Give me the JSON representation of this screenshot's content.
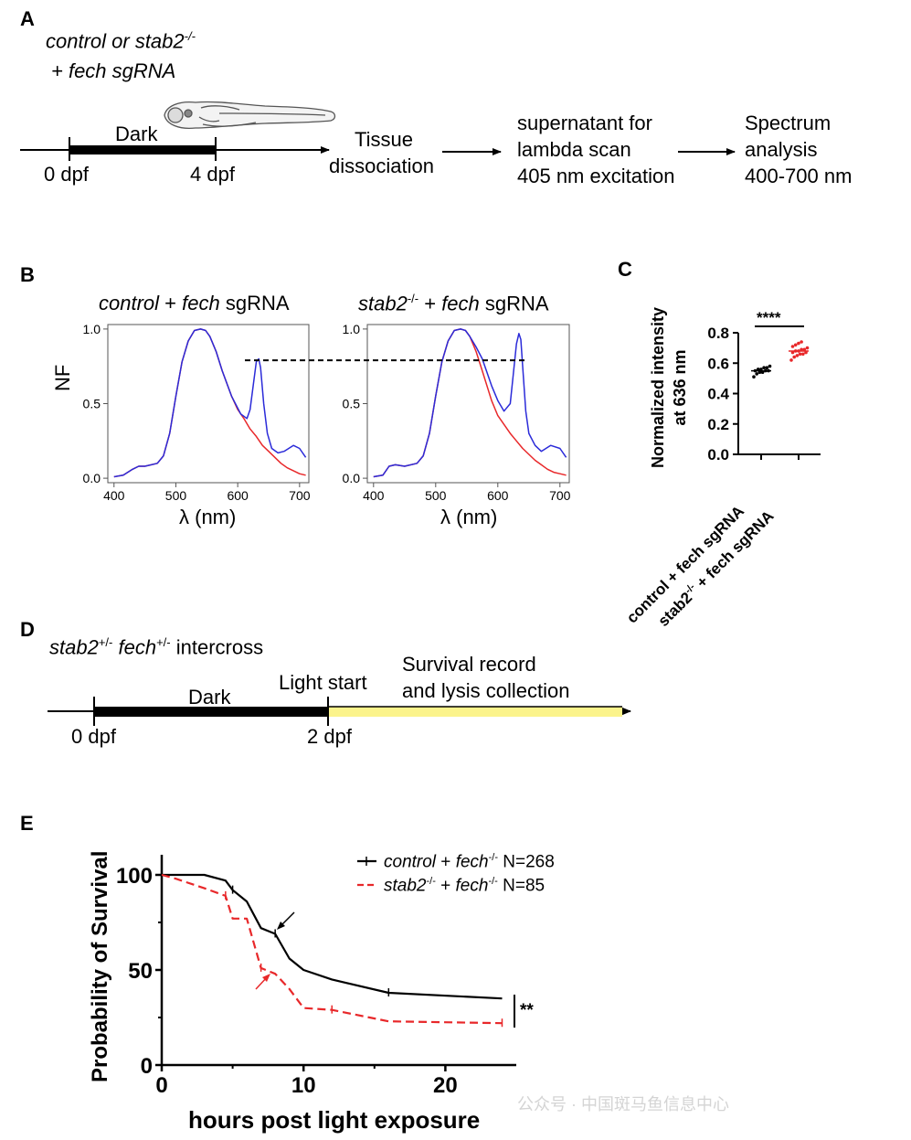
{
  "panel_a": {
    "label": "A",
    "genotype_line1": "control or stab2",
    "genotype_line1_sup": "-/-",
    "genotype_line2": "+ fech sgRNA",
    "dark_label": "Dark",
    "start_tick": "0 dpf",
    "end_tick": "4 dpf",
    "step1_line1": "Tissue",
    "step1_line2": "dissociation",
    "step2_line1": "supernatant for",
    "step2_line2": "lambda scan",
    "step2_line3": "405 nm excitation",
    "step3_line1": "Spectrum",
    "step3_line2": "analysis",
    "step3_line3": "400-700 nm"
  },
  "panel_b": {
    "label": "B",
    "left_title_italic1": "control",
    "left_title_plus": " + ",
    "left_title_italic2": "fech",
    "left_title_rest": " sgRNA",
    "right_title_italic1": "stab2",
    "right_title_sup": "-/-",
    "right_title_plus": " + ",
    "right_title_italic2": "fech",
    "right_title_rest": " sgRNA",
    "ylabel": "NF",
    "xlabel": "λ (nm)"
  },
  "panel_c": {
    "label": "C",
    "ylabel_line1": "Normalized intensity",
    "ylabel_line2": "at 636 nm",
    "significance": "****",
    "cat1": "control + fech sgRNA",
    "cat2_a": "stab2",
    "cat2_sup": "-/-",
    "cat2_b": " + fech sgRNA"
  },
  "panel_d": {
    "label": "D",
    "cross_a": "stab2",
    "cross_sup1": "+/-",
    "cross_b": " fech",
    "cross_sup2": "+/-",
    "cross_c": " intercross",
    "dark_label": "Dark",
    "light_start": "Light start",
    "survival_line1": "Survival record",
    "survival_line2": "and lysis collection",
    "start_tick": "0 dpf",
    "end_tick": "2 dpf"
  },
  "panel_e": {
    "label": "E",
    "ylabel": "Probability of Survival",
    "xlabel": "hours post light exposure",
    "legend1_a": "control",
    "legend1_b": " + ",
    "legend1_c": "fech",
    "legend1_sup": "-/-",
    "legend1_n": "N=268",
    "legend2_a": "stab2",
    "legend2_sup1": "-/-",
    "legend2_b": " + ",
    "legend2_c": "fech",
    "legend2_sup2": "-/-",
    "legend2_n": "N=85",
    "significance": "**"
  },
  "watermark": "公众号 · 中国斑马鱼信息中心",
  "colors": {
    "black": "#000000",
    "blue": "#2b2bd9",
    "red": "#e8282a",
    "yellow": "#fbf38b"
  },
  "chart_data": [
    {
      "type": "line",
      "panel": "B-left",
      "xlim": [
        390,
        715
      ],
      "ylim": [
        -0.03,
        1.03
      ],
      "xticks": [
        400,
        500,
        600,
        700
      ],
      "yticks": [
        0.0,
        0.5,
        1.0
      ],
      "series": [
        {
          "color": "blue",
          "x": [
            400,
            415,
            430,
            440,
            450,
            470,
            480,
            490,
            500,
            510,
            520,
            530,
            540,
            548,
            555,
            565,
            575,
            590,
            605,
            615,
            620,
            625,
            630,
            634,
            637,
            642,
            648,
            655,
            665,
            675,
            690,
            700,
            710
          ],
          "y": [
            0.01,
            0.02,
            0.06,
            0.08,
            0.08,
            0.1,
            0.15,
            0.3,
            0.55,
            0.78,
            0.92,
            0.99,
            1.0,
            0.99,
            0.95,
            0.85,
            0.72,
            0.55,
            0.43,
            0.4,
            0.46,
            0.62,
            0.78,
            0.8,
            0.74,
            0.5,
            0.3,
            0.2,
            0.17,
            0.18,
            0.22,
            0.2,
            0.14
          ]
        },
        {
          "color": "red",
          "x": [
            400,
            415,
            430,
            440,
            450,
            470,
            480,
            490,
            500,
            510,
            520,
            530,
            540,
            548,
            555,
            565,
            575,
            590,
            600,
            610,
            620,
            630,
            640,
            650,
            660,
            670,
            680,
            690,
            700,
            710
          ],
          "y": [
            0.01,
            0.02,
            0.06,
            0.08,
            0.08,
            0.1,
            0.15,
            0.3,
            0.55,
            0.78,
            0.92,
            0.99,
            1.0,
            0.99,
            0.95,
            0.85,
            0.72,
            0.55,
            0.46,
            0.4,
            0.33,
            0.28,
            0.22,
            0.18,
            0.14,
            0.1,
            0.07,
            0.05,
            0.03,
            0.02
          ]
        }
      ],
      "reference_line_y": 0.79
    },
    {
      "type": "line",
      "panel": "B-right",
      "xlim": [
        390,
        715
      ],
      "ylim": [
        -0.03,
        1.03
      ],
      "xticks": [
        400,
        500,
        600,
        700
      ],
      "yticks": [
        0.0,
        0.5,
        1.0
      ],
      "series": [
        {
          "color": "blue",
          "x": [
            400,
            415,
            425,
            435,
            450,
            470,
            480,
            490,
            500,
            510,
            520,
            530,
            540,
            548,
            555,
            565,
            575,
            590,
            600,
            610,
            620,
            625,
            630,
            634,
            637,
            640,
            645,
            650,
            660,
            670,
            685,
            700,
            710
          ],
          "y": [
            0.01,
            0.02,
            0.08,
            0.09,
            0.08,
            0.1,
            0.15,
            0.3,
            0.55,
            0.78,
            0.92,
            0.99,
            1.0,
            0.99,
            0.95,
            0.88,
            0.8,
            0.62,
            0.52,
            0.45,
            0.5,
            0.7,
            0.9,
            0.97,
            0.93,
            0.75,
            0.45,
            0.3,
            0.22,
            0.18,
            0.22,
            0.2,
            0.14
          ]
        },
        {
          "color": "red",
          "x": [
            400,
            415,
            425,
            435,
            450,
            470,
            480,
            490,
            500,
            510,
            520,
            530,
            540,
            548,
            555,
            565,
            575,
            590,
            600,
            610,
            620,
            630,
            640,
            650,
            660,
            670,
            680,
            690,
            700,
            710
          ],
          "y": [
            0.01,
            0.02,
            0.08,
            0.09,
            0.08,
            0.1,
            0.15,
            0.3,
            0.55,
            0.78,
            0.92,
            0.99,
            1.0,
            0.99,
            0.95,
            0.85,
            0.72,
            0.52,
            0.42,
            0.36,
            0.3,
            0.25,
            0.2,
            0.16,
            0.12,
            0.09,
            0.06,
            0.04,
            0.03,
            0.02
          ]
        }
      ]
    },
    {
      "type": "scatter",
      "panel": "C",
      "ylim": [
        0.0,
        0.8
      ],
      "yticks": [
        0.0,
        0.2,
        0.4,
        0.6,
        0.8
      ],
      "categories": [
        "control + fech sgRNA",
        "stab2-/- + fech sgRNA"
      ],
      "series": [
        {
          "category": 0,
          "color": "black",
          "mean": 0.55,
          "values": [
            0.51,
            0.53,
            0.54,
            0.54,
            0.55,
            0.55,
            0.55,
            0.56,
            0.56,
            0.57,
            0.57,
            0.58
          ]
        },
        {
          "category": 1,
          "color": "red",
          "mean": 0.68,
          "values": [
            0.62,
            0.64,
            0.65,
            0.66,
            0.66,
            0.67,
            0.67,
            0.68,
            0.68,
            0.69,
            0.69,
            0.7,
            0.71,
            0.72,
            0.73,
            0.74
          ]
        }
      ]
    },
    {
      "type": "line",
      "panel": "E",
      "xlim": [
        0,
        25
      ],
      "ylim": [
        0,
        100
      ],
      "xticks": [
        0,
        10,
        20
      ],
      "yticks": [
        0,
        50,
        100
      ],
      "series": [
        {
          "color": "black",
          "style": "solid",
          "x": [
            0,
            3,
            4.5,
            5,
            6,
            7,
            8,
            9,
            10,
            12,
            16,
            24
          ],
          "y": [
            100,
            100,
            97,
            92,
            86,
            72,
            69,
            56,
            50,
            45,
            38,
            35
          ]
        },
        {
          "color": "red",
          "style": "dashed",
          "x": [
            0,
            1,
            3,
            4.5,
            5,
            6,
            7,
            8,
            9,
            10,
            12,
            16,
            24
          ],
          "y": [
            100,
            98,
            93,
            89,
            77,
            77,
            51,
            48,
            40,
            30,
            29,
            23,
            22
          ]
        }
      ]
    }
  ]
}
